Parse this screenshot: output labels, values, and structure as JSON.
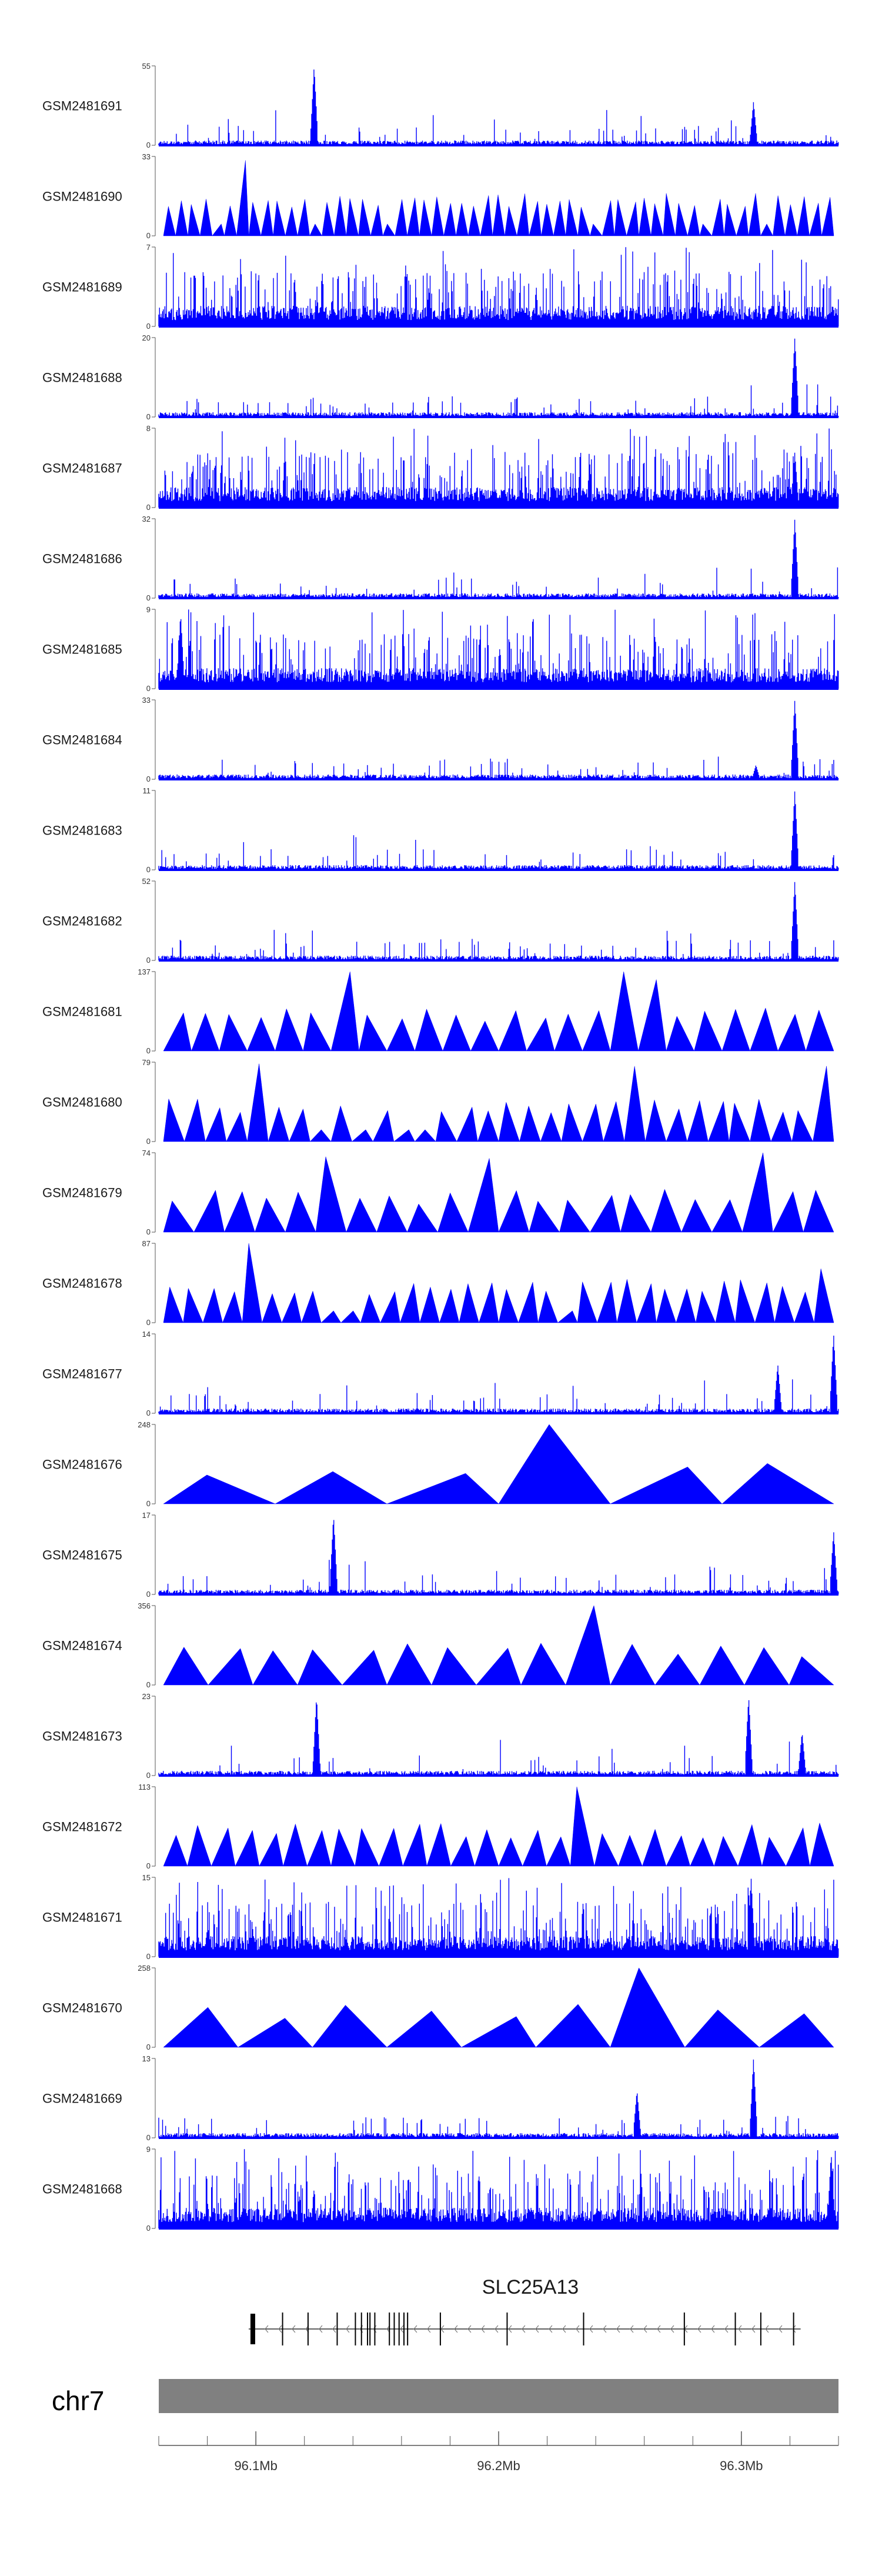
{
  "chart_data": {
    "type": "area",
    "title": "",
    "chromosome": "chr7",
    "gene": "SLC25A13",
    "strand": "-",
    "region_mb": [
      96.06,
      96.34
    ],
    "x_ticks": [
      "96.1Mb",
      "96.2Mb",
      "96.3Mb"
    ],
    "x_tick_values": [
      96.1,
      96.2,
      96.3
    ],
    "colors": {
      "signal": "#0000ff",
      "chrom_band": "#808080",
      "gene_model": "#000000",
      "axis": "#555555"
    },
    "tracks": [
      {
        "name": "GSM2481691",
        "ymax": "55",
        "ymin": "0",
        "ymax_value": 55,
        "style": "spiky",
        "peaks": [
          [
            96.124,
            1.0
          ],
          [
            96.305,
            0.55
          ]
        ]
      },
      {
        "name": "GSM2481690",
        "ymax": "33",
        "ymin": "0",
        "ymax_value": 33,
        "style": "tri",
        "segments": 55,
        "peaks": [
          [
            96.094,
            0.95
          ]
        ]
      },
      {
        "name": "GSM2481689",
        "ymax": "7",
        "ymin": "0",
        "ymax_value": 7,
        "style": "dense",
        "peaks": []
      },
      {
        "name": "GSM2481688",
        "ymax": "20",
        "ymin": "0",
        "ymax_value": 20,
        "style": "spiky",
        "peaks": [
          [
            96.322,
            1.0
          ]
        ]
      },
      {
        "name": "GSM2481687",
        "ymax": "8",
        "ymin": "0",
        "ymax_value": 8,
        "style": "dense",
        "peaks": [
          [
            96.322,
            0.7
          ]
        ]
      },
      {
        "name": "GSM2481686",
        "ymax": "32",
        "ymin": "0",
        "ymax_value": 32,
        "style": "spiky",
        "peaks": [
          [
            96.322,
            1.0
          ]
        ]
      },
      {
        "name": "GSM2481685",
        "ymax": "9",
        "ymin": "0",
        "ymax_value": 9,
        "style": "dense",
        "peaks": [
          [
            96.069,
            0.95
          ]
        ]
      },
      {
        "name": "GSM2481684",
        "ymax": "33",
        "ymin": "0",
        "ymax_value": 33,
        "style": "spiky",
        "peaks": [
          [
            96.322,
            1.0
          ],
          [
            96.306,
            0.18
          ]
        ]
      },
      {
        "name": "GSM2481683",
        "ymax": "11",
        "ymin": "0",
        "ymax_value": 11,
        "style": "spiky",
        "peaks": [
          [
            96.322,
            1.0
          ]
        ]
      },
      {
        "name": "GSM2481682",
        "ymax": "52",
        "ymin": "0",
        "ymax_value": 52,
        "style": "spiky",
        "peaks": [
          [
            96.322,
            1.0
          ]
        ]
      },
      {
        "name": "GSM2481681",
        "ymax": "137",
        "ymin": "0",
        "ymax_value": 137,
        "style": "tri",
        "segments": 24,
        "peaks": [
          [
            96.131,
            1.0
          ],
          [
            96.255,
            1.0
          ],
          [
            96.26,
            0.9
          ]
        ]
      },
      {
        "name": "GSM2481680",
        "ymax": "79",
        "ymin": "0",
        "ymax_value": 79,
        "style": "tri",
        "segments": 32,
        "peaks": [
          [
            96.105,
            0.98
          ],
          [
            96.255,
            0.95
          ],
          [
            96.336,
            0.95
          ]
        ]
      },
      {
        "name": "GSM2481679",
        "ymax": "74",
        "ymin": "0",
        "ymax_value": 74,
        "style": "tri",
        "segments": 22,
        "peaks": [
          [
            96.136,
            0.95
          ],
          [
            96.19,
            0.93
          ],
          [
            96.304,
            1.0
          ]
        ]
      },
      {
        "name": "GSM2481678",
        "ymax": "87",
        "ymin": "0",
        "ymax_value": 87,
        "style": "tri",
        "segments": 34,
        "peaks": [
          [
            96.096,
            1.0
          ],
          [
            96.33,
            0.68
          ]
        ]
      },
      {
        "name": "GSM2481677",
        "ymax": "14",
        "ymin": "0",
        "ymax_value": 14,
        "style": "spiky",
        "peaks": [
          [
            96.338,
            1.0
          ],
          [
            96.315,
            0.62
          ]
        ]
      },
      {
        "name": "GSM2481676",
        "ymax": "248",
        "ymin": "0",
        "ymax_value": 248,
        "style": "tri",
        "segments": 6,
        "peaks": [
          [
            96.222,
            1.0
          ]
        ]
      },
      {
        "name": "GSM2481675",
        "ymax": "17",
        "ymin": "0",
        "ymax_value": 17,
        "style": "spiky",
        "peaks": [
          [
            96.132,
            1.0
          ],
          [
            96.338,
            0.8
          ]
        ]
      },
      {
        "name": "GSM2481674",
        "ymax": "356",
        "ymin": "0",
        "ymax_value": 356,
        "style": "tri",
        "segments": 15,
        "peaks": [
          [
            96.242,
            1.0
          ]
        ]
      },
      {
        "name": "GSM2481673",
        "ymax": "23",
        "ymin": "0",
        "ymax_value": 23,
        "style": "spiky",
        "peaks": [
          [
            96.125,
            1.0
          ],
          [
            96.303,
            1.0
          ],
          [
            96.325,
            0.55
          ]
        ]
      },
      {
        "name": "GSM2481672",
        "ymax": "113",
        "ymin": "0",
        "ymax_value": 113,
        "style": "tri",
        "segments": 28,
        "peaks": [
          [
            96.233,
            1.0
          ]
        ]
      },
      {
        "name": "GSM2481671",
        "ymax": "15",
        "ymin": "0",
        "ymax_value": 15,
        "style": "dense",
        "peaks": [
          [
            96.304,
            1.0
          ]
        ]
      },
      {
        "name": "GSM2481670",
        "ymax": "258",
        "ymin": "0",
        "ymax_value": 258,
        "style": "tri",
        "segments": 9,
        "peaks": [
          [
            96.271,
            1.0
          ]
        ]
      },
      {
        "name": "GSM2481669",
        "ymax": "13",
        "ymin": "0",
        "ymax_value": 13,
        "style": "spiky",
        "peaks": [
          [
            96.305,
            1.0
          ],
          [
            96.257,
            0.6
          ]
        ]
      },
      {
        "name": "GSM2481668",
        "ymax": "9",
        "ymin": "0",
        "ymax_value": 9,
        "style": "dense",
        "peaks": [
          [
            96.337,
            0.95
          ]
        ]
      }
    ],
    "exons_mb": [
      96.0985,
      96.111,
      96.1215,
      96.1335,
      96.141,
      96.1435,
      96.146,
      96.147,
      96.149,
      96.155,
      96.157,
      96.159,
      96.161,
      96.1625,
      96.176,
      96.2035,
      96.235,
      96.2765,
      96.2975,
      96.308,
      96.3215
    ]
  }
}
